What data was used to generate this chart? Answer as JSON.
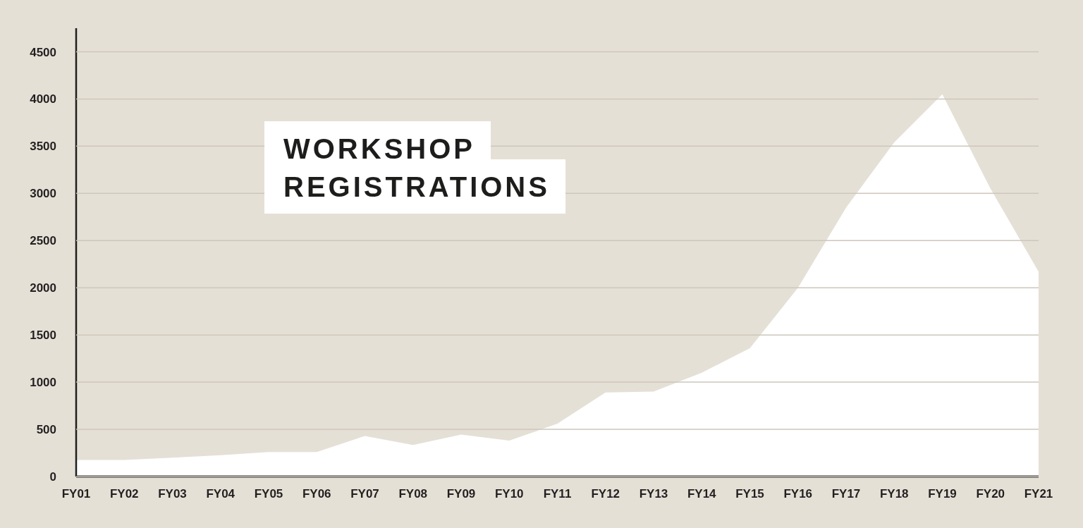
{
  "chart_data": {
    "type": "area",
    "title": "WORKSHOP REGISTRATIONS",
    "categories": [
      "FY01",
      "FY02",
      "FY03",
      "FY04",
      "FY05",
      "FY06",
      "FY07",
      "FY08",
      "FY09",
      "FY10",
      "FY11",
      "FY12",
      "FY13",
      "FY14",
      "FY15",
      "FY16",
      "FY17",
      "FY18",
      "FY19",
      "FY20",
      "FY21"
    ],
    "series": [
      {
        "color": "#ffffff",
        "values": [
          175,
          175,
          200,
          225,
          260,
          260,
          430,
          335,
          445,
          380,
          560,
          890,
          900,
          1100,
          1360,
          2000,
          2850,
          3540,
          4050,
          3050,
          2170
        ]
      }
    ],
    "ylim": [
      0,
      4750
    ],
    "yticks": [
      0,
      500,
      1000,
      1500,
      2000,
      2500,
      3000,
      3500,
      4000,
      4500
    ],
    "grid": "y"
  }
}
